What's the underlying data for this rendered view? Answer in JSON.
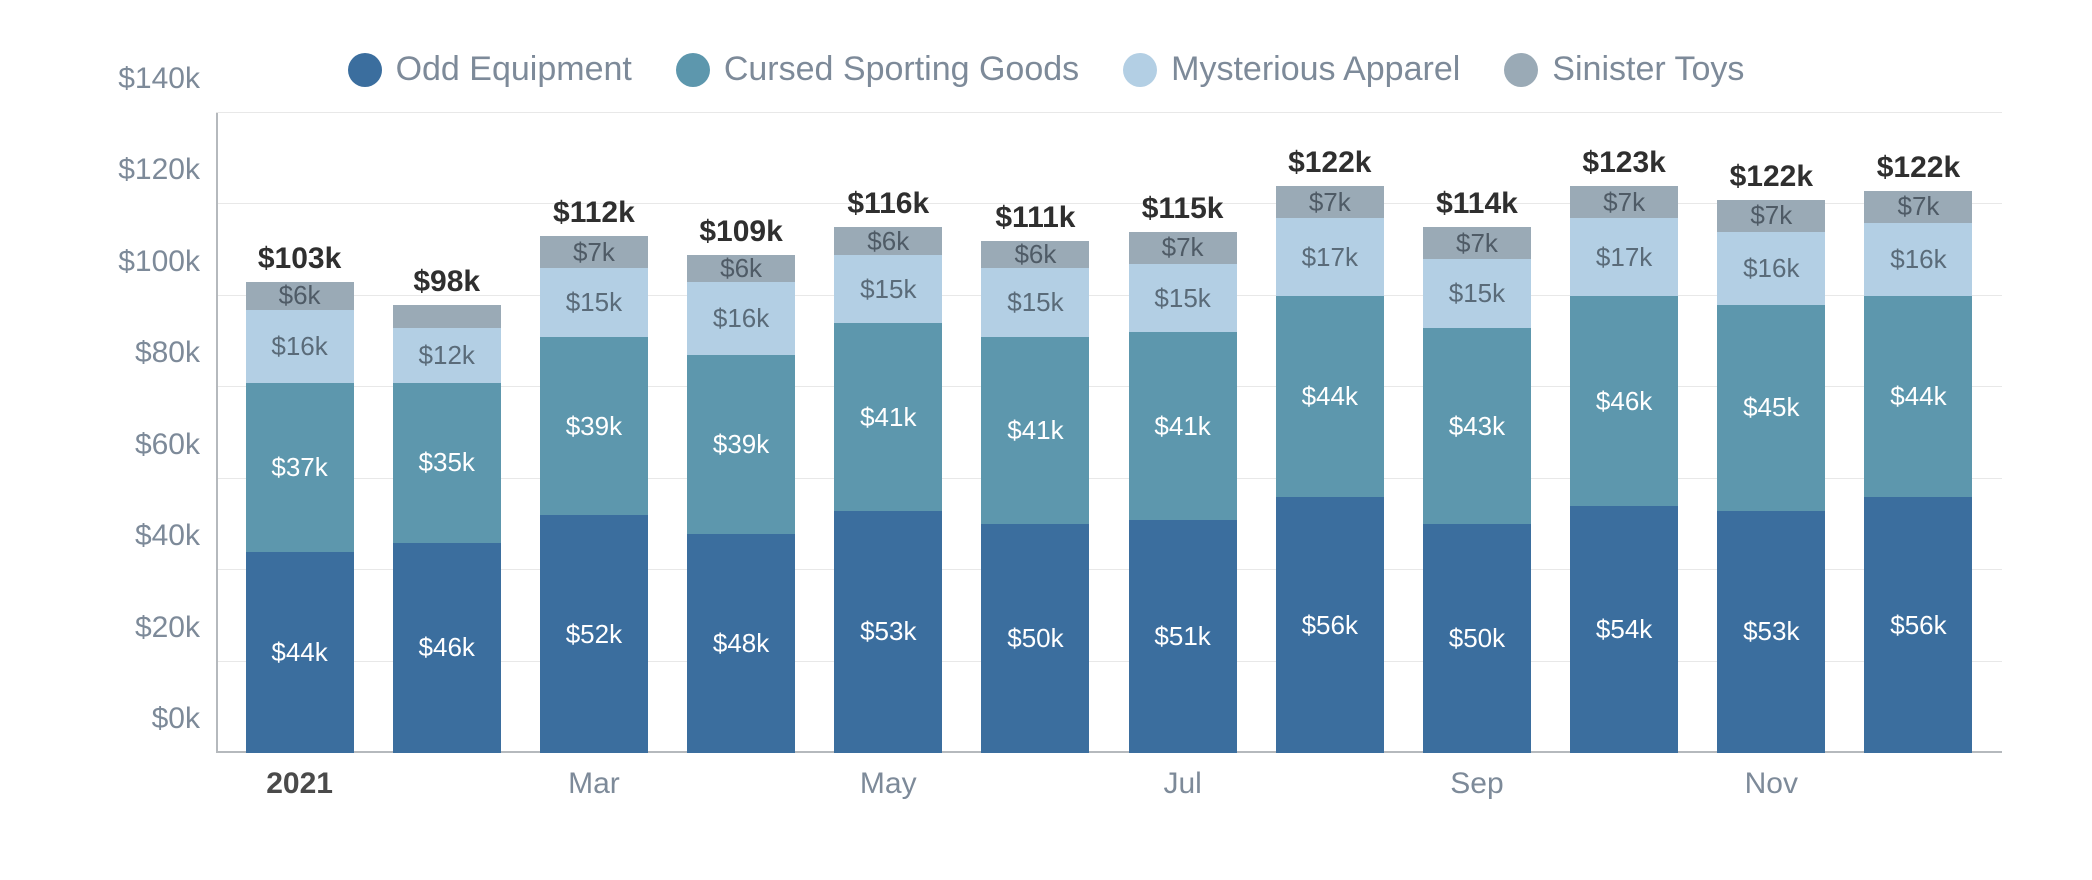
{
  "chart": {
    "type": "stacked-bar",
    "background_color": "#ffffff",
    "grid_color": "#e8e8e8",
    "axis_color": "#b5b9bd",
    "label_color": "#7d8a99",
    "total_label_color": "#2f2f2f",
    "legend_fontsize": 34,
    "axis_fontsize": 30,
    "seg_label_fontsize": 26,
    "total_fontsize": 30,
    "y": {
      "min": 0,
      "max": 140,
      "step": 20,
      "unit_prefix": "$",
      "unit_suffix": "k",
      "ticks": [
        "$0k",
        "$20k",
        "$40k",
        "$60k",
        "$80k",
        "$100k",
        "$120k",
        "$140k"
      ]
    },
    "series": [
      {
        "key": "odd",
        "label": "Odd Equipment",
        "color": "#3b6e9e",
        "text_color": "#ffffff"
      },
      {
        "key": "cursed",
        "label": "Cursed Sporting Goods",
        "color": "#5d97ad",
        "text_color": "#ffffff"
      },
      {
        "key": "mysterious",
        "label": "Mysterious Apparel",
        "color": "#b3cfe4",
        "text_color": "#5a6b79"
      },
      {
        "key": "sinister",
        "label": "Sinister Toys",
        "color": "#9aaab6",
        "text_color": "#4f5b66"
      }
    ],
    "months": [
      {
        "x": "2021",
        "x_bold": true,
        "total": "$103k",
        "odd": {
          "v": 44,
          "l": "$44k"
        },
        "cursed": {
          "v": 37,
          "l": "$37k"
        },
        "mysterious": {
          "v": 16,
          "l": "$16k"
        },
        "sinister": {
          "v": 6,
          "l": "$6k"
        }
      },
      {
        "x": "",
        "x_bold": false,
        "total": "$98k",
        "odd": {
          "v": 46,
          "l": "$46k"
        },
        "cursed": {
          "v": 35,
          "l": "$35k"
        },
        "mysterious": {
          "v": 12,
          "l": "$12k"
        },
        "sinister": {
          "v": 5,
          "l": ""
        }
      },
      {
        "x": "Mar",
        "x_bold": false,
        "total": "$112k",
        "odd": {
          "v": 52,
          "l": "$52k"
        },
        "cursed": {
          "v": 39,
          "l": "$39k"
        },
        "mysterious": {
          "v": 15,
          "l": "$15k"
        },
        "sinister": {
          "v": 7,
          "l": "$7k"
        }
      },
      {
        "x": "",
        "x_bold": false,
        "total": "$109k",
        "odd": {
          "v": 48,
          "l": "$48k"
        },
        "cursed": {
          "v": 39,
          "l": "$39k"
        },
        "mysterious": {
          "v": 16,
          "l": "$16k"
        },
        "sinister": {
          "v": 6,
          "l": "$6k"
        }
      },
      {
        "x": "May",
        "x_bold": false,
        "total": "$116k",
        "odd": {
          "v": 53,
          "l": "$53k"
        },
        "cursed": {
          "v": 41,
          "l": "$41k"
        },
        "mysterious": {
          "v": 15,
          "l": "$15k"
        },
        "sinister": {
          "v": 6,
          "l": "$6k"
        }
      },
      {
        "x": "",
        "x_bold": false,
        "total": "$111k",
        "odd": {
          "v": 50,
          "l": "$50k"
        },
        "cursed": {
          "v": 41,
          "l": "$41k"
        },
        "mysterious": {
          "v": 15,
          "l": "$15k"
        },
        "sinister": {
          "v": 6,
          "l": "$6k"
        }
      },
      {
        "x": "Jul",
        "x_bold": false,
        "total": "$115k",
        "odd": {
          "v": 51,
          "l": "$51k"
        },
        "cursed": {
          "v": 41,
          "l": "$41k"
        },
        "mysterious": {
          "v": 15,
          "l": "$15k"
        },
        "sinister": {
          "v": 7,
          "l": "$7k"
        }
      },
      {
        "x": "",
        "x_bold": false,
        "total": "$122k",
        "odd": {
          "v": 56,
          "l": "$56k"
        },
        "cursed": {
          "v": 44,
          "l": "$44k"
        },
        "mysterious": {
          "v": 17,
          "l": "$17k"
        },
        "sinister": {
          "v": 7,
          "l": "$7k"
        }
      },
      {
        "x": "Sep",
        "x_bold": false,
        "total": "$114k",
        "odd": {
          "v": 50,
          "l": "$50k"
        },
        "cursed": {
          "v": 43,
          "l": "$43k"
        },
        "mysterious": {
          "v": 15,
          "l": "$15k"
        },
        "sinister": {
          "v": 7,
          "l": "$7k"
        }
      },
      {
        "x": "",
        "x_bold": false,
        "total": "$123k",
        "odd": {
          "v": 54,
          "l": "$54k"
        },
        "cursed": {
          "v": 46,
          "l": "$46k"
        },
        "mysterious": {
          "v": 17,
          "l": "$17k"
        },
        "sinister": {
          "v": 7,
          "l": "$7k"
        }
      },
      {
        "x": "Nov",
        "x_bold": false,
        "total": "$122k",
        "odd": {
          "v": 53,
          "l": "$53k"
        },
        "cursed": {
          "v": 45,
          "l": "$45k"
        },
        "mysterious": {
          "v": 16,
          "l": "$16k"
        },
        "sinister": {
          "v": 7,
          "l": "$7k"
        }
      },
      {
        "x": "",
        "x_bold": false,
        "total": "$122k",
        "odd": {
          "v": 56,
          "l": "$56k"
        },
        "cursed": {
          "v": 44,
          "l": "$44k"
        },
        "mysterious": {
          "v": 16,
          "l": "$16k"
        },
        "sinister": {
          "v": 7,
          "l": "$7k"
        }
      }
    ]
  }
}
